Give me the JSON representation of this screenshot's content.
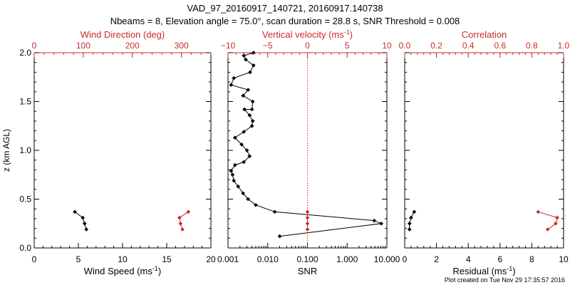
{
  "header": {
    "title": "VAD_97_20160917_140721, 20160917.140738",
    "subtitle": "Nbeams = 8, Elevation angle = 75.0°, scan duration = 28.8 s, SNR Threshold = 0.008",
    "footer": "Plot created on Tue Nov 29 17:35:57 2016"
  },
  "colors": {
    "primary": "#000000",
    "secondary": "#cc2a2a"
  },
  "chart_data": [
    {
      "type": "line",
      "ylabel": "z (km AGL)",
      "ylim": [
        0,
        2
      ],
      "yticks": [
        "0.0",
        "0.5",
        "1.0",
        "1.5",
        "2.0"
      ],
      "bottom_axis": {
        "label": "Wind Speed (ms",
        "sup": "-1",
        "close": ")",
        "lim": [
          0,
          20
        ],
        "ticks": [
          "0",
          "5",
          "10",
          "15",
          "20"
        ]
      },
      "top_axis": {
        "label": "Wind Direction (deg)",
        "lim": [
          0,
          360
        ],
        "ticks": [
          "0",
          "100",
          "200",
          "300"
        ],
        "tick_values": [
          0,
          100,
          200,
          300
        ]
      },
      "series": [
        {
          "axis": "bottom",
          "color": "#000000",
          "x": [
            4.6,
            5.5,
            5.7,
            5.9
          ],
          "y": [
            0.37,
            0.31,
            0.25,
            0.19
          ]
        },
        {
          "axis": "top",
          "color": "#cc2a2a",
          "x": [
            314,
            296,
            298,
            302
          ],
          "y": [
            0.37,
            0.31,
            0.25,
            0.19
          ]
        }
      ]
    },
    {
      "type": "line",
      "ylim": [
        0,
        2
      ],
      "bottom_axis": {
        "label": "SNR",
        "scale": "log",
        "lim": [
          0.001,
          10
        ],
        "ticks": [
          "0.001",
          "0.010",
          "0.100",
          "1.000",
          "10.000"
        ],
        "tick_values": [
          0.001,
          0.01,
          0.1,
          1,
          10
        ]
      },
      "top_axis": {
        "label": "Vertical velocity (ms",
        "sup": "-1",
        "close": ")",
        "lim": [
          -10,
          10
        ],
        "ticks": [
          "−10",
          "−5",
          "0",
          "5",
          "10"
        ],
        "tick_values": [
          -10,
          -5,
          0,
          5,
          10
        ]
      },
      "zero_line": {
        "axis": "top",
        "value": 0,
        "style": "dotted"
      },
      "series": [
        {
          "axis": "bottom",
          "color": "#000000",
          "x": [
            0.02,
            7.2,
            4.8,
            0.015,
            0.005,
            0.0032,
            0.0024,
            0.0018,
            0.0014,
            0.0013,
            0.0012,
            0.0015,
            0.0025,
            0.0035,
            0.003,
            0.0022,
            0.0015,
            0.0025,
            0.004,
            0.0042,
            0.0035,
            0.0026,
            0.004,
            0.0042,
            0.0024,
            0.0032,
            0.0012,
            0.0014,
            0.0036,
            0.0044,
            0.0028,
            0.0025,
            0.0044
          ],
          "y": [
            0.12,
            0.25,
            0.28,
            0.37,
            0.44,
            0.5,
            0.56,
            0.63,
            0.69,
            0.75,
            0.79,
            0.85,
            0.88,
            0.94,
            1.0,
            1.06,
            1.13,
            1.19,
            1.25,
            1.3,
            1.36,
            1.42,
            1.42,
            1.5,
            1.56,
            1.62,
            1.67,
            1.74,
            1.8,
            1.87,
            1.93,
            1.97,
            2.0
          ]
        },
        {
          "axis": "top",
          "color": "#cc2a2a",
          "x": [
            0,
            0,
            0,
            0
          ],
          "y": [
            0.37,
            0.31,
            0.25,
            0.19
          ]
        }
      ]
    },
    {
      "type": "line",
      "ylim": [
        0,
        2
      ],
      "bottom_axis": {
        "label": "Residual (ms",
        "sup": "-1",
        "close": ")",
        "lim": [
          0,
          10
        ],
        "ticks": [
          "0",
          "2",
          "4",
          "6",
          "8",
          "10"
        ]
      },
      "top_axis": {
        "label": "Correlation",
        "lim": [
          0,
          1
        ],
        "ticks": [
          "0.0",
          "0.2",
          "0.4",
          "0.6",
          "0.8",
          "1.0"
        ]
      },
      "series": [
        {
          "axis": "bottom",
          "color": "#000000",
          "x": [
            0.6,
            0.4,
            0.3,
            0.3
          ],
          "y": [
            0.37,
            0.31,
            0.25,
            0.19
          ]
        },
        {
          "axis": "top",
          "color": "#cc2a2a",
          "x": [
            0.84,
            0.96,
            0.95,
            0.9
          ],
          "y": [
            0.37,
            0.31,
            0.25,
            0.19
          ]
        }
      ]
    }
  ]
}
